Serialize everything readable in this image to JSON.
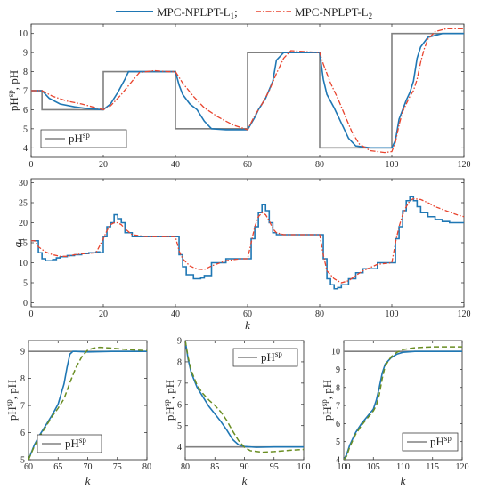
{
  "legend": {
    "top_series": [
      "MPC-NPLPT-L",
      "MPC-NPLPT-L"
    ],
    "top_series_sub": [
      "1",
      "2"
    ],
    "top_separator": ";",
    "setpoint_base": "pH",
    "setpoint_sup": "sp"
  },
  "colors": {
    "L1": "#1f77b4",
    "L2": "#e8442e",
    "L2_zoom": "#6a8e23",
    "setpoint": "#808080",
    "q_green": "#4d8f1f"
  },
  "chart_data": [
    {
      "type": "line",
      "id": "ph-main",
      "xlabel": "",
      "ylabel_main": "pH",
      "ylabel_sup": "sp",
      "ylabel_rest": ", pH",
      "xlim": [
        0,
        120
      ],
      "ylim": [
        3.5,
        10.5
      ],
      "xticks": [
        "0",
        "20",
        "40",
        "60",
        "80",
        "100",
        "120"
      ],
      "yticks": [
        "4",
        "5",
        "6",
        "7",
        "8",
        "9",
        "10"
      ],
      "setpoint": {
        "x": [
          0,
          3,
          3,
          20,
          20,
          40,
          40,
          60,
          60,
          80,
          80,
          100,
          100,
          120
        ],
        "y": [
          7,
          7,
          6,
          6,
          8,
          8,
          5,
          5,
          9,
          9,
          4,
          4,
          10,
          10
        ]
      },
      "series": [
        {
          "key": "L1",
          "x": [
            0,
            3,
            5,
            8,
            12,
            16,
            20,
            22,
            24,
            26,
            27,
            29,
            32,
            36,
            40,
            41,
            42,
            44,
            46,
            48,
            50,
            54,
            58,
            60,
            62,
            63,
            65,
            67,
            68,
            70,
            74,
            78,
            80,
            81,
            82,
            84,
            86,
            88,
            90,
            94,
            98,
            100,
            101,
            102,
            103,
            104,
            105,
            106,
            107,
            108,
            110,
            114,
            118,
            120
          ],
          "y": [
            7,
            7,
            6.6,
            6.3,
            6.15,
            6.05,
            6.0,
            6.3,
            6.9,
            7.6,
            8.0,
            8.0,
            8.0,
            8.0,
            8.0,
            7.3,
            6.8,
            6.3,
            6.0,
            5.4,
            5.0,
            4.95,
            4.95,
            4.95,
            5.6,
            6.0,
            6.6,
            7.5,
            8.6,
            9.0,
            9.0,
            9.0,
            9.0,
            7.6,
            6.8,
            6.1,
            5.3,
            4.5,
            4.1,
            4.0,
            4.0,
            4.0,
            4.4,
            5.5,
            6.0,
            6.5,
            6.9,
            7.5,
            8.7,
            9.3,
            9.8,
            10.0,
            10.0,
            10.0
          ]
        },
        {
          "key": "L2",
          "x": [
            0,
            3,
            6,
            10,
            14,
            18,
            20,
            22,
            25,
            28,
            30,
            34,
            38,
            40,
            42,
            45,
            48,
            52,
            56,
            60,
            62,
            64,
            66,
            68,
            70,
            72,
            76,
            80,
            81,
            83,
            85,
            87,
            89,
            91,
            94,
            98,
            100,
            101,
            102,
            103,
            104,
            105,
            106,
            107,
            108,
            109,
            110,
            112,
            115,
            120
          ],
          "y": [
            7,
            7,
            6.7,
            6.45,
            6.3,
            6.1,
            6.0,
            6.2,
            6.8,
            7.5,
            7.95,
            8.05,
            8.0,
            8.0,
            7.4,
            6.7,
            6.1,
            5.6,
            5.2,
            4.95,
            5.7,
            6.3,
            7.0,
            7.9,
            8.7,
            9.1,
            9.05,
            9.0,
            8.4,
            7.4,
            6.6,
            5.7,
            4.8,
            4.2,
            3.85,
            3.75,
            3.8,
            4.3,
            5.2,
            5.9,
            6.3,
            6.7,
            7.0,
            7.6,
            8.5,
            9.2,
            9.7,
            10.1,
            10.25,
            10.25
          ]
        }
      ]
    },
    {
      "type": "line",
      "id": "q-main",
      "xlabel": "k",
      "ylabel_main": "q",
      "ylabel_sub": "1",
      "xlim": [
        0,
        120
      ],
      "ylim": [
        -1,
        31
      ],
      "xticks": [
        "0",
        "20",
        "40",
        "60",
        "80",
        "100",
        "120"
      ],
      "yticks": [
        "0",
        "5",
        "10",
        "15",
        "20",
        "25",
        "30"
      ],
      "series": [
        {
          "key": "L1",
          "step": true,
          "x": [
            0,
            1,
            2,
            3,
            4,
            5,
            6,
            7,
            8,
            10,
            12,
            14,
            16,
            18,
            19,
            20,
            21,
            22,
            23,
            24,
            25,
            26,
            28,
            32,
            36,
            40,
            41,
            42,
            43,
            45,
            47,
            48,
            50,
            54,
            58,
            60,
            61,
            62,
            63,
            64,
            65,
            66,
            67,
            68,
            70,
            74,
            78,
            80,
            81,
            82,
            83,
            84,
            85,
            86,
            88,
            90,
            92,
            96,
            99,
            100,
            101,
            102,
            103,
            104,
            105,
            106,
            107,
            108,
            110,
            112,
            114,
            116,
            118,
            120
          ],
          "y": [
            15.5,
            15.5,
            12.5,
            11,
            10.5,
            10.5,
            10.8,
            11.2,
            11.5,
            11.8,
            12,
            12.3,
            12.5,
            12.7,
            12.5,
            16.5,
            19,
            20,
            22,
            21,
            20,
            17.5,
            16.5,
            16.5,
            16.5,
            16.5,
            12,
            9,
            7,
            6,
            6.2,
            6.8,
            10,
            11,
            11,
            11,
            16,
            19,
            22.5,
            24.5,
            23,
            20,
            17.5,
            17,
            17,
            17,
            17,
            17,
            11,
            6,
            4.5,
            3.5,
            3.8,
            4.5,
            6,
            7.5,
            8.5,
            10,
            10,
            10,
            16,
            19,
            23,
            25.5,
            26.5,
            25.5,
            24,
            22.5,
            21.5,
            20.8,
            20.3,
            20,
            20,
            20
          ]
        },
        {
          "key": "L2",
          "x": [
            0,
            1,
            2,
            4,
            6,
            8,
            10,
            12,
            15,
            18,
            20,
            21,
            22,
            23,
            24,
            25,
            26,
            28,
            32,
            36,
            40,
            41,
            42,
            44,
            46,
            48,
            50,
            54,
            58,
            60,
            61,
            62,
            63,
            64,
            65,
            66,
            67,
            68,
            70,
            74,
            78,
            80,
            81,
            82,
            84,
            86,
            88,
            90,
            92,
            96,
            100,
            101,
            102,
            103,
            104,
            105,
            106,
            108,
            110,
            112,
            115,
            118,
            120
          ],
          "y": [
            15.5,
            15.5,
            14,
            12.7,
            12,
            11.6,
            11.6,
            12,
            12.3,
            12.5,
            16,
            18,
            19.5,
            20,
            20,
            19.5,
            18.5,
            17,
            16.5,
            16.5,
            16.5,
            13,
            11,
            9.2,
            8.4,
            8.3,
            9.2,
            10.5,
            11,
            11,
            15,
            19,
            21.5,
            22.5,
            22,
            20.5,
            18.5,
            17.5,
            17,
            17,
            17,
            17,
            12,
            8,
            6,
            5,
            5.5,
            6.8,
            8,
            9.6,
            10,
            15,
            19,
            22,
            24,
            25.5,
            26,
            25.8,
            25,
            24,
            23,
            22,
            21.5
          ]
        }
      ]
    },
    {
      "type": "line",
      "id": "zoom-60-80",
      "xlabel": "k",
      "ylabel_main": "pH",
      "ylabel_sup": "sp",
      "ylabel_rest": ", pH",
      "xlim": [
        60,
        80
      ],
      "ylim": [
        5,
        9.4
      ],
      "xticks": [
        "60",
        "65",
        "70",
        "75",
        "80"
      ],
      "yticks": [
        "5",
        "6",
        "7",
        "8",
        "9"
      ],
      "setpoint": {
        "x": [
          60,
          80
        ],
        "y": [
          9,
          9
        ]
      },
      "series": [
        {
          "key": "L1",
          "x": [
            60,
            61,
            62,
            63,
            64,
            65,
            66,
            66.5,
            67,
            67.5,
            68,
            70,
            74,
            78,
            80
          ],
          "y": [
            5.0,
            5.55,
            5.95,
            6.3,
            6.65,
            7.05,
            7.8,
            8.4,
            8.9,
            9.0,
            9.0,
            8.98,
            9.0,
            9.0,
            9.0
          ]
        },
        {
          "key": "L2",
          "x": [
            60,
            61,
            62,
            63,
            64,
            65,
            66,
            67,
            68,
            69,
            70,
            71,
            72,
            74,
            76,
            78,
            80
          ],
          "y": [
            5.0,
            5.5,
            5.9,
            6.25,
            6.6,
            6.9,
            7.25,
            7.85,
            8.4,
            8.8,
            9.05,
            9.12,
            9.15,
            9.12,
            9.08,
            9.05,
            9.03
          ]
        }
      ]
    },
    {
      "type": "line",
      "id": "zoom-80-100",
      "xlabel": "k",
      "ylabel_main": "pH",
      "ylabel_sup": "sp",
      "ylabel_rest": ", pH",
      "xlim": [
        80,
        100
      ],
      "ylim": [
        3.4,
        9
      ],
      "xticks": [
        "80",
        "85",
        "90",
        "95",
        "100"
      ],
      "yticks": [
        "4",
        "5",
        "6",
        "7",
        "8",
        "9"
      ],
      "setpoint": {
        "x": [
          80,
          100
        ],
        "y": [
          4,
          4
        ]
      },
      "series": [
        {
          "key": "L1",
          "x": [
            80,
            80.5,
            81,
            82,
            83,
            84,
            85,
            86,
            87,
            88,
            89,
            90,
            92,
            95,
            98,
            100
          ],
          "y": [
            9.0,
            8.1,
            7.5,
            6.8,
            6.35,
            5.9,
            5.55,
            5.2,
            4.8,
            4.35,
            4.1,
            4.02,
            3.98,
            4.0,
            4.0,
            4.0
          ]
        },
        {
          "key": "L2",
          "x": [
            80,
            80.5,
            81,
            82,
            83,
            84,
            85,
            86,
            87,
            88,
            89,
            90,
            91,
            93,
            95,
            98,
            100
          ],
          "y": [
            9.0,
            8.2,
            7.6,
            6.9,
            6.5,
            6.2,
            5.95,
            5.65,
            5.25,
            4.75,
            4.3,
            3.98,
            3.82,
            3.75,
            3.78,
            3.85,
            3.88
          ]
        }
      ]
    },
    {
      "type": "line",
      "id": "zoom-100-120",
      "xlabel": "k",
      "ylabel_main": "pH",
      "ylabel_sup": "sp",
      "ylabel_rest": ", pH",
      "xlim": [
        100,
        120
      ],
      "ylim": [
        4,
        10.6
      ],
      "xticks": [
        "100",
        "105",
        "110",
        "115",
        "120"
      ],
      "yticks": [
        "4",
        "5",
        "6",
        "7",
        "8",
        "9",
        "10"
      ],
      "setpoint": {
        "x": [
          100,
          120
        ],
        "y": [
          10,
          10
        ]
      },
      "series": [
        {
          "key": "L1",
          "x": [
            100,
            100.5,
            101,
            102,
            103,
            104,
            105,
            105.5,
            106,
            106.5,
            107,
            108,
            109,
            110,
            112,
            115,
            120
          ],
          "y": [
            4.0,
            4.3,
            4.8,
            5.5,
            6.0,
            6.4,
            6.8,
            7.3,
            8.0,
            8.8,
            9.3,
            9.65,
            9.85,
            9.95,
            10.0,
            10.0,
            10.0
          ]
        },
        {
          "key": "L2",
          "x": [
            100,
            100.5,
            101,
            102,
            103,
            104,
            105,
            105.5,
            106,
            106.5,
            107,
            108,
            109,
            110,
            112,
            115,
            120
          ],
          "y": [
            4.0,
            4.2,
            4.7,
            5.4,
            5.9,
            6.3,
            6.7,
            7.0,
            7.6,
            8.5,
            9.2,
            9.7,
            9.95,
            10.1,
            10.2,
            10.25,
            10.25
          ]
        }
      ]
    }
  ]
}
